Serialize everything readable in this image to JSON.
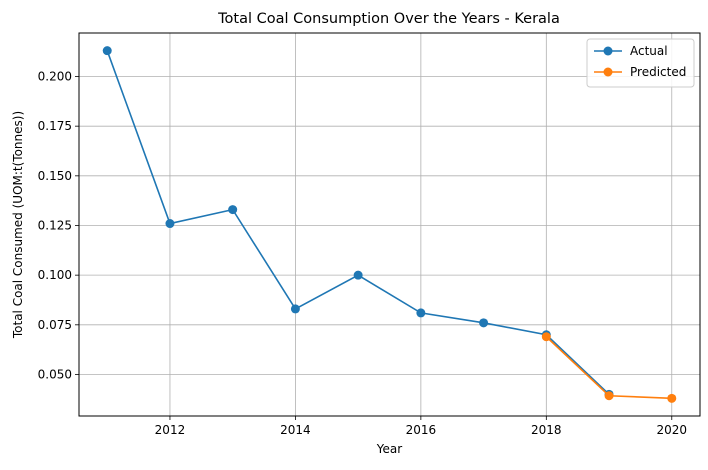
{
  "chart_data": {
    "type": "line",
    "title": "Total Coal Consumption Over the Years - Kerala",
    "xlabel": "Year",
    "ylabel": "Total Coal Consumed (UOM:t(Tonnes))",
    "xlim": [
      2010.55,
      2020.45
    ],
    "ylim": [
      0.0291,
      0.2219
    ],
    "xticks": [
      2012,
      2014,
      2016,
      2018,
      2020
    ],
    "yticks": [
      0.05,
      0.075,
      0.1,
      0.125,
      0.15,
      0.175,
      0.2
    ],
    "ytick_labels": [
      "0.050",
      "0.075",
      "0.100",
      "0.125",
      "0.150",
      "0.175",
      "0.200"
    ],
    "grid": true,
    "legend_position": "top-right",
    "series": [
      {
        "name": "Actual",
        "color": "#1f77b4",
        "x": [
          2011,
          2012,
          2013,
          2014,
          2015,
          2016,
          2017,
          2018,
          2019
        ],
        "y": [
          0.213,
          0.126,
          0.133,
          0.083,
          0.1,
          0.081,
          0.076,
          0.07,
          0.04
        ]
      },
      {
        "name": "Predicted",
        "color": "#ff7f0e",
        "x": [
          2018,
          2019,
          2020
        ],
        "y": [
          0.069,
          0.0393,
          0.038
        ]
      }
    ]
  }
}
